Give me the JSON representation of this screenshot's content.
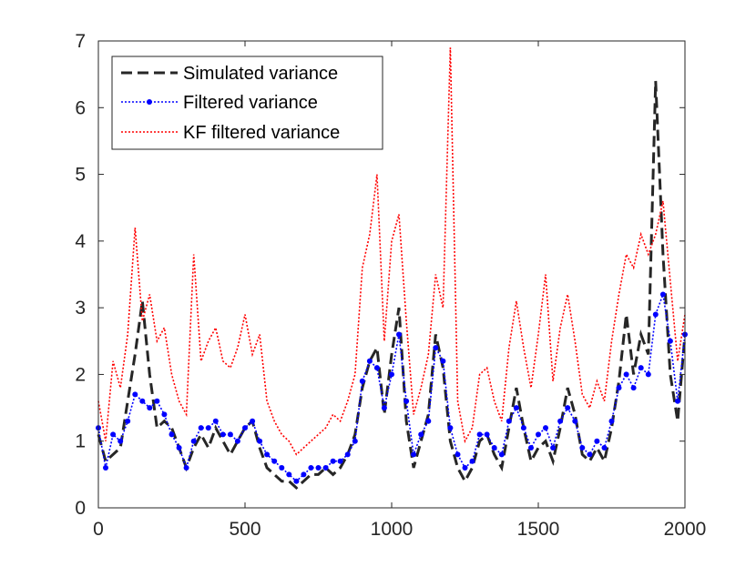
{
  "chart_data": {
    "type": "line",
    "title": "",
    "xlabel": "",
    "ylabel": "",
    "xlim": [
      0,
      2000
    ],
    "ylim": [
      0,
      7
    ],
    "xticks": [
      0,
      500,
      1000,
      1500,
      2000
    ],
    "yticks": [
      0,
      1,
      2,
      3,
      4,
      5,
      6,
      7
    ],
    "xtick_labels": [
      "0",
      "500",
      "1000",
      "1500",
      "2000"
    ],
    "ytick_labels": [
      "0",
      "1",
      "2",
      "3",
      "4",
      "5",
      "6",
      "7"
    ],
    "grid": false,
    "legend_position": "top-left",
    "series": [
      {
        "name": "Simulated variance",
        "style": "dashed",
        "color": "#262626",
        "x": [
          0,
          25,
          50,
          75,
          100,
          125,
          150,
          175,
          200,
          225,
          250,
          275,
          300,
          325,
          350,
          375,
          400,
          425,
          450,
          475,
          500,
          525,
          550,
          575,
          600,
          625,
          650,
          675,
          700,
          725,
          750,
          775,
          800,
          825,
          850,
          875,
          900,
          925,
          950,
          975,
          1000,
          1025,
          1050,
          1075,
          1100,
          1125,
          1150,
          1175,
          1200,
          1225,
          1250,
          1275,
          1300,
          1325,
          1350,
          1375,
          1400,
          1425,
          1450,
          1475,
          1500,
          1525,
          1550,
          1575,
          1600,
          1625,
          1650,
          1675,
          1700,
          1725,
          1750,
          1775,
          1800,
          1825,
          1850,
          1875,
          1900,
          1925,
          1950,
          1975,
          2000
        ],
        "values": [
          1.1,
          0.7,
          0.8,
          0.9,
          1.6,
          2.3,
          3.1,
          2.0,
          1.2,
          1.3,
          1.2,
          0.9,
          0.6,
          0.9,
          1.1,
          0.9,
          1.2,
          1.0,
          0.8,
          1.0,
          1.2,
          1.3,
          0.9,
          0.6,
          0.5,
          0.4,
          0.4,
          0.3,
          0.4,
          0.5,
          0.5,
          0.6,
          0.5,
          0.6,
          0.8,
          1.1,
          1.8,
          2.2,
          2.4,
          1.4,
          2.3,
          3.0,
          1.3,
          0.6,
          1.0,
          1.4,
          2.6,
          2.1,
          1.0,
          0.6,
          0.4,
          0.6,
          1.0,
          1.1,
          0.8,
          0.6,
          1.2,
          1.8,
          1.2,
          0.7,
          0.9,
          1.0,
          0.7,
          1.2,
          1.8,
          1.4,
          0.8,
          0.7,
          0.9,
          0.7,
          1.2,
          1.9,
          2.9,
          2.0,
          2.6,
          2.3,
          6.4,
          3.8,
          2.0,
          1.3,
          2.6
        ]
      },
      {
        "name": "Filtered variance",
        "style": "dotted-marker",
        "color": "#0000ff",
        "x": [
          0,
          25,
          50,
          75,
          100,
          125,
          150,
          175,
          200,
          225,
          250,
          275,
          300,
          325,
          350,
          375,
          400,
          425,
          450,
          475,
          500,
          525,
          550,
          575,
          600,
          625,
          650,
          675,
          700,
          725,
          750,
          775,
          800,
          825,
          850,
          875,
          900,
          925,
          950,
          975,
          1000,
          1025,
          1050,
          1075,
          1100,
          1125,
          1150,
          1175,
          1200,
          1225,
          1250,
          1275,
          1300,
          1325,
          1350,
          1375,
          1400,
          1425,
          1450,
          1475,
          1500,
          1525,
          1550,
          1575,
          1600,
          1625,
          1650,
          1675,
          1700,
          1725,
          1750,
          1775,
          1800,
          1825,
          1850,
          1875,
          1900,
          1925,
          1950,
          1975,
          2000
        ],
        "values": [
          1.2,
          0.6,
          1.1,
          1.0,
          1.3,
          1.7,
          1.6,
          1.5,
          1.6,
          1.4,
          1.1,
          0.9,
          0.6,
          1.0,
          1.2,
          1.2,
          1.3,
          1.1,
          1.1,
          1.0,
          1.2,
          1.3,
          1.0,
          0.8,
          0.7,
          0.6,
          0.5,
          0.4,
          0.5,
          0.6,
          0.6,
          0.6,
          0.7,
          0.7,
          0.8,
          1.0,
          1.9,
          2.2,
          2.1,
          1.5,
          2.0,
          2.6,
          1.6,
          0.8,
          1.1,
          1.3,
          2.4,
          2.2,
          1.2,
          0.8,
          0.6,
          0.7,
          1.1,
          1.1,
          0.9,
          0.8,
          1.3,
          1.5,
          1.2,
          0.9,
          1.1,
          1.2,
          0.9,
          1.3,
          1.5,
          1.3,
          0.9,
          0.8,
          1.0,
          0.9,
          1.3,
          1.8,
          2.0,
          1.8,
          2.1,
          2.0,
          2.9,
          3.2,
          2.5,
          1.6,
          2.6
        ]
      },
      {
        "name": "KF filtered variance",
        "style": "dotted",
        "color": "#ff0000",
        "x": [
          0,
          25,
          50,
          75,
          100,
          125,
          150,
          175,
          200,
          225,
          250,
          275,
          300,
          325,
          350,
          375,
          400,
          425,
          450,
          475,
          500,
          525,
          550,
          575,
          600,
          625,
          650,
          675,
          700,
          725,
          750,
          775,
          800,
          825,
          850,
          875,
          900,
          925,
          950,
          975,
          1000,
          1025,
          1050,
          1075,
          1100,
          1125,
          1150,
          1175,
          1200,
          1225,
          1250,
          1275,
          1300,
          1325,
          1350,
          1375,
          1400,
          1425,
          1450,
          1475,
          1500,
          1525,
          1550,
          1575,
          1600,
          1625,
          1650,
          1675,
          1700,
          1725,
          1750,
          1775,
          1800,
          1825,
          1850,
          1875,
          1900,
          1925,
          1950,
          1975,
          2000
        ],
        "values": [
          1.6,
          1.0,
          2.2,
          1.8,
          2.6,
          4.2,
          2.8,
          3.2,
          2.5,
          2.7,
          2.0,
          1.6,
          1.4,
          3.8,
          2.2,
          2.5,
          2.7,
          2.2,
          2.1,
          2.4,
          2.9,
          2.3,
          2.6,
          1.6,
          1.3,
          1.1,
          1.0,
          0.8,
          0.9,
          1.0,
          1.1,
          1.2,
          1.4,
          1.3,
          1.6,
          2.0,
          3.6,
          4.1,
          5.0,
          2.5,
          4.0,
          4.4,
          2.8,
          1.4,
          1.8,
          2.3,
          3.5,
          3.0,
          6.9,
          1.6,
          1.0,
          1.2,
          2.0,
          2.1,
          1.6,
          1.3,
          2.4,
          3.1,
          2.4,
          1.8,
          2.6,
          3.5,
          1.9,
          2.7,
          3.2,
          2.5,
          1.7,
          1.5,
          1.9,
          1.6,
          2.5,
          3.2,
          3.8,
          3.6,
          4.1,
          3.8,
          4.1,
          4.6,
          3.4,
          2.2,
          2.9
        ]
      }
    ]
  }
}
